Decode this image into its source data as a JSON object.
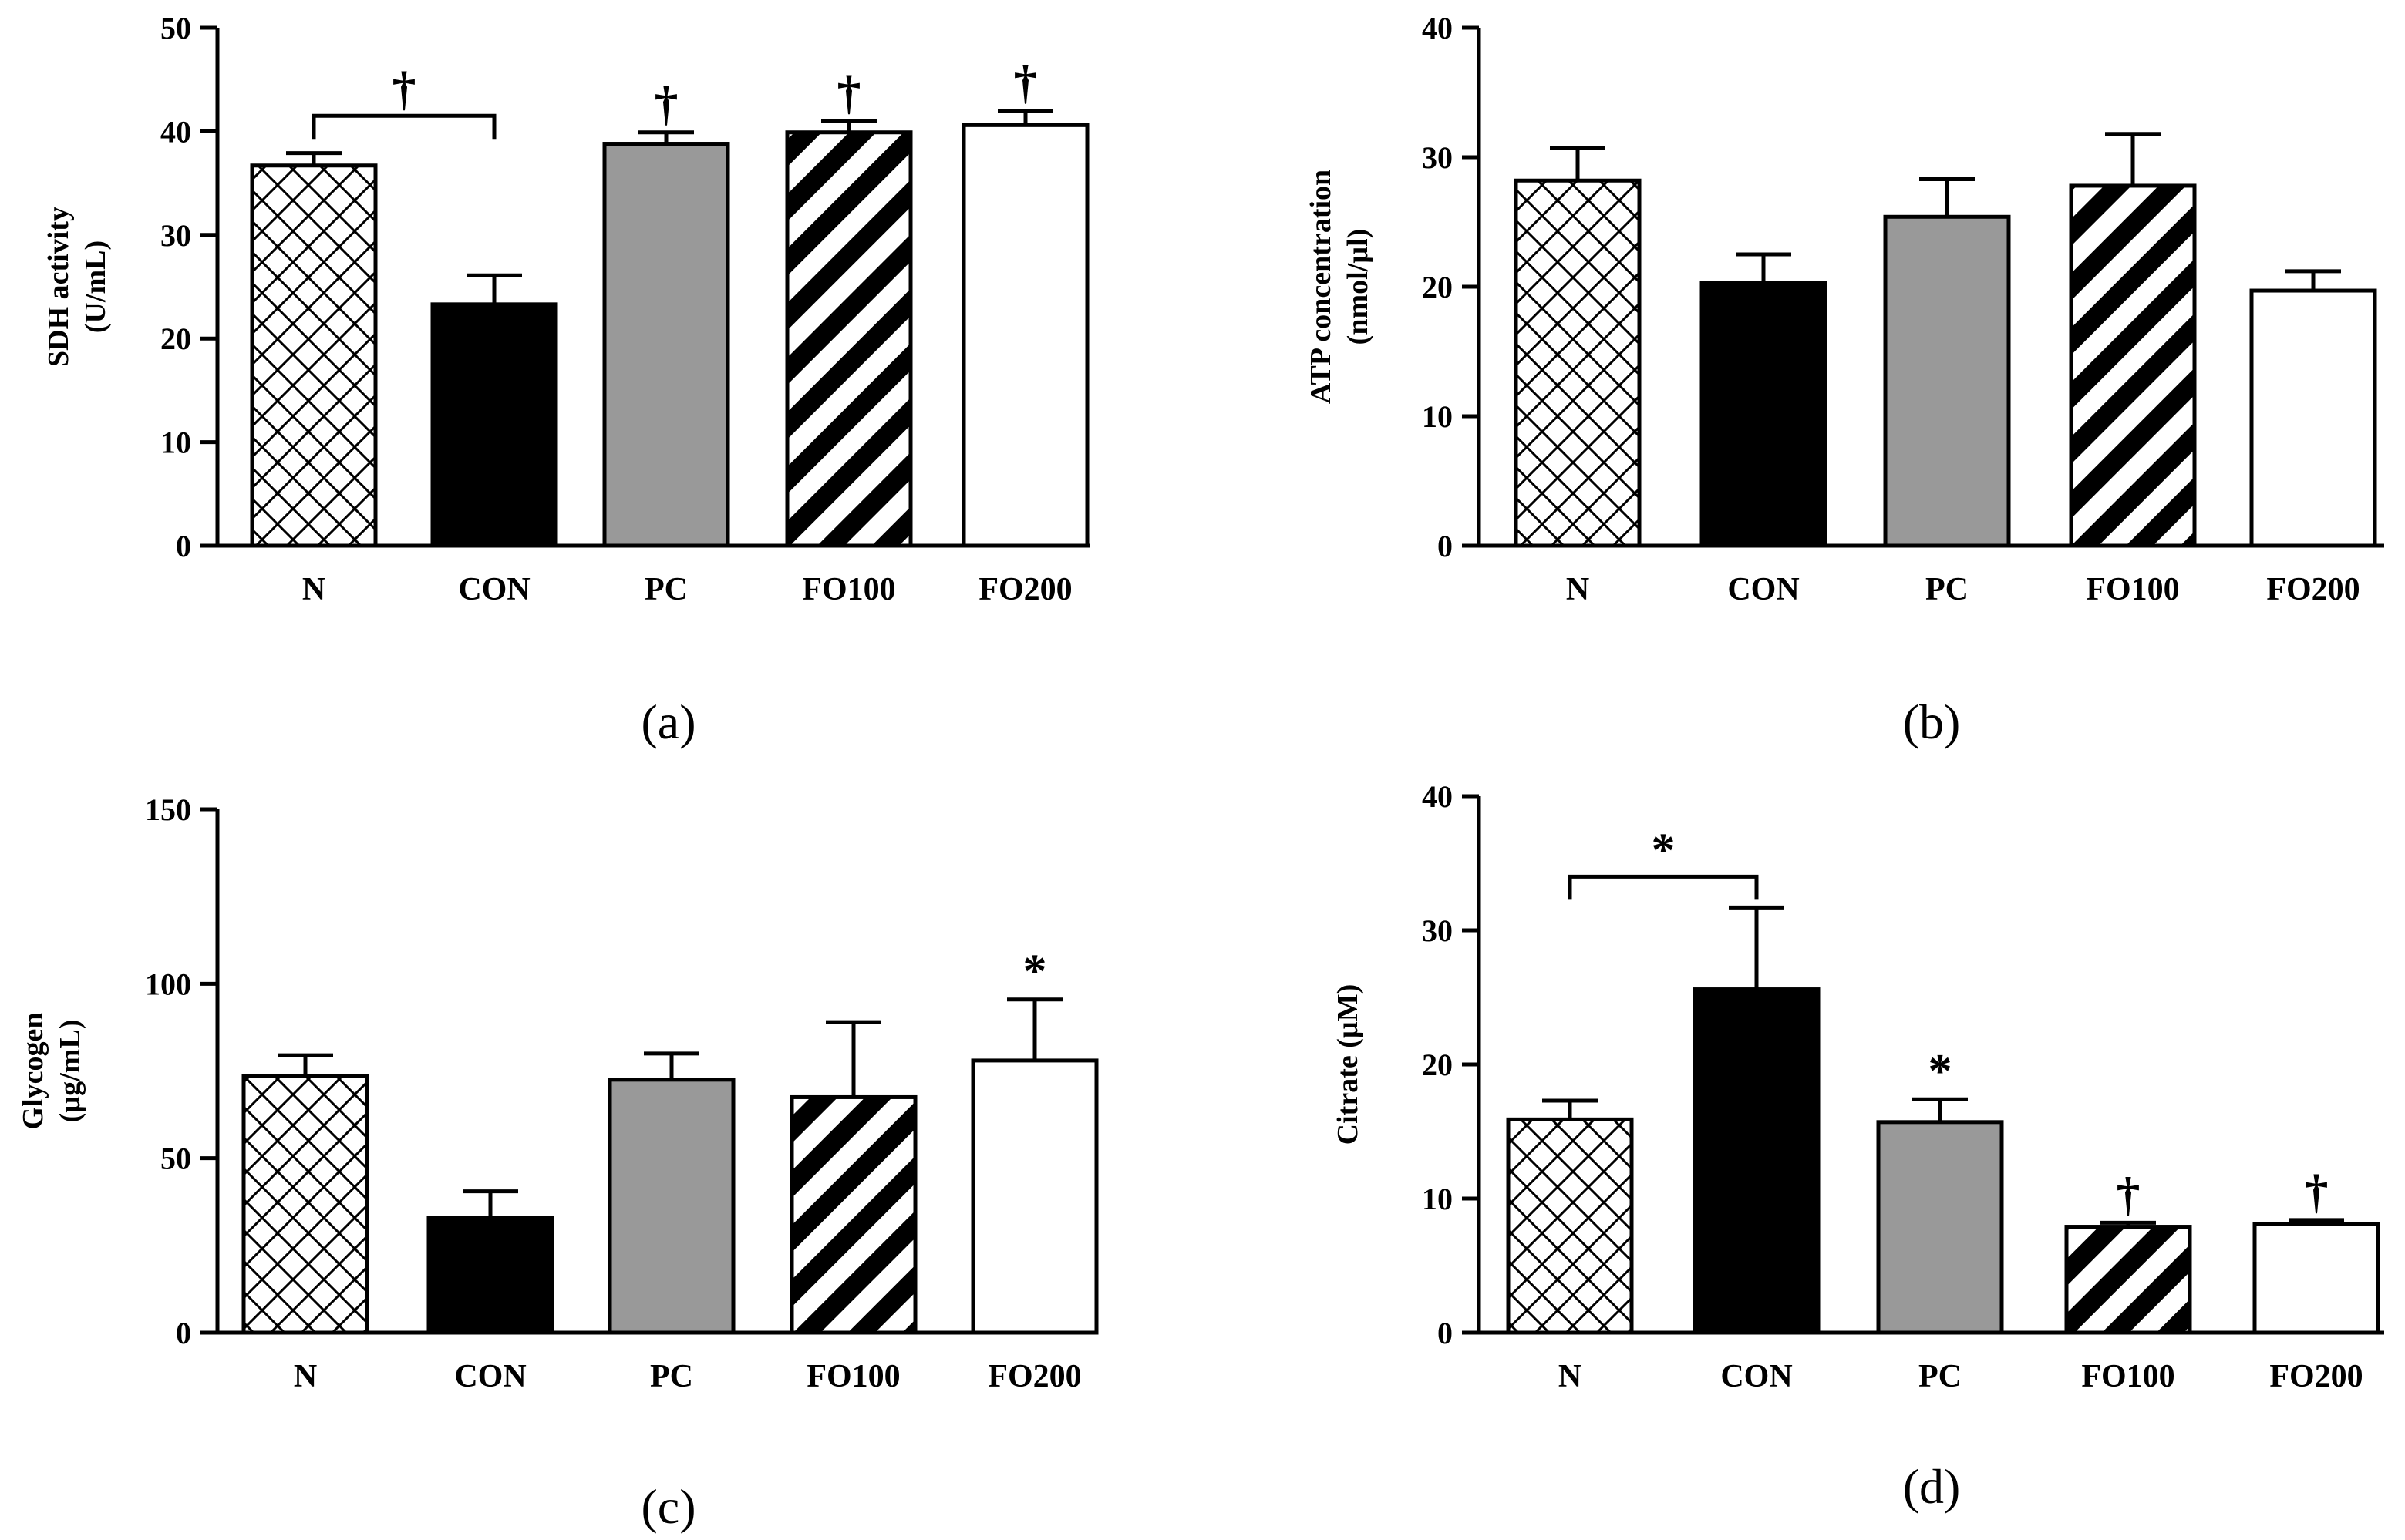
{
  "chart_data": [
    {
      "id": "a",
      "type": "bar",
      "panel_label": "(a)",
      "ylabel_line1": "SDH  activity",
      "ylabel_line2": "(U/mL)",
      "categories": [
        "N",
        "CON",
        "PC",
        "FO100",
        "FO200"
      ],
      "values": [
        36.7,
        23.3,
        38.8,
        39.9,
        40.6
      ],
      "errors": [
        1.2,
        2.8,
        1.1,
        1.1,
        1.4
      ],
      "ylim": [
        0,
        50
      ],
      "yticks": [
        0,
        10,
        20,
        30,
        40,
        50
      ],
      "fills": [
        "crosshatch",
        "#000000",
        "#999999",
        "stripes",
        "#ffffff"
      ],
      "significance": [
        {
          "symbol": "†",
          "from": "N",
          "to": "CON",
          "bracket_level": 41.5
        },
        {
          "symbol": "†",
          "at": "PC"
        },
        {
          "symbol": "†",
          "at": "FO100"
        },
        {
          "symbol": "†",
          "at": "FO200"
        }
      ]
    },
    {
      "id": "b",
      "type": "bar",
      "panel_label": "(b)",
      "ylabel_line1": "ATP concentration",
      "ylabel_line2": "(nmol/µl)",
      "categories": [
        "N",
        "CON",
        "PC",
        "FO100",
        "FO200"
      ],
      "values": [
        28.2,
        20.3,
        25.4,
        27.8,
        19.7
      ],
      "errors": [
        2.5,
        2.2,
        2.9,
        4.0,
        1.5
      ],
      "ylim": [
        0,
        40
      ],
      "yticks": [
        0,
        10,
        20,
        30,
        40
      ],
      "fills": [
        "crosshatch",
        "#000000",
        "#999999",
        "stripes",
        "#ffffff"
      ],
      "significance": []
    },
    {
      "id": "c",
      "type": "bar",
      "panel_label": "(c)",
      "ylabel_line1": "Glycogen",
      "ylabel_line2": "(µg/mL)",
      "categories": [
        "N",
        "CON",
        "PC",
        "FO100",
        "FO200"
      ],
      "values": [
        73.5,
        33.0,
        72.5,
        67.5,
        78.0
      ],
      "errors": [
        6.0,
        7.5,
        7.5,
        21.5,
        17.5
      ],
      "ylim": [
        0,
        150
      ],
      "yticks": [
        0,
        50,
        100,
        150
      ],
      "fills": [
        "crosshatch",
        "#000000",
        "#999999",
        "stripes",
        "#ffffff"
      ],
      "significance": [
        {
          "symbol": "*",
          "at": "FO200"
        }
      ]
    },
    {
      "id": "d",
      "type": "bar",
      "panel_label": "(d)",
      "ylabel_line1": "Citrate (µM)",
      "ylabel_line2": "",
      "categories": [
        "N",
        "CON",
        "PC",
        "FO100",
        "FO200"
      ],
      "values": [
        15.9,
        25.6,
        15.7,
        7.9,
        8.1
      ],
      "errors": [
        1.4,
        6.1,
        1.7,
        0.3,
        0.3
      ],
      "ylim": [
        0,
        40
      ],
      "yticks": [
        0,
        10,
        20,
        30,
        40
      ],
      "fills": [
        "crosshatch",
        "#000000",
        "#999999",
        "stripes",
        "#ffffff"
      ],
      "significance": [
        {
          "symbol": "*",
          "from": "N",
          "to": "CON",
          "bracket_level": 34.0
        },
        {
          "symbol": "*",
          "at": "PC"
        },
        {
          "symbol": "†",
          "at": "FO100"
        },
        {
          "symbol": "†",
          "at": "FO200"
        }
      ]
    }
  ]
}
